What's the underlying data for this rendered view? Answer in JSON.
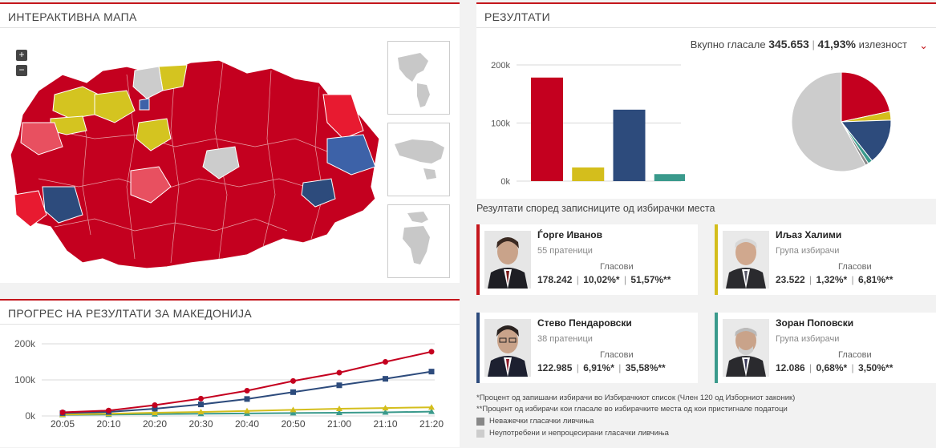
{
  "map_panel": {
    "title": "ИНТЕРАКТИВНА МАПА",
    "zoom_in": "+",
    "zoom_out": "−"
  },
  "results_panel": {
    "title": "РЕЗУЛТАТИ",
    "summary_label": "Вкупно гласале",
    "total_votes": "345.653",
    "turnout": "41,93%",
    "turnout_label": "излезност",
    "bar_chart": {
      "type": "bar",
      "ticks": [
        "200k",
        "100k",
        "0k"
      ],
      "ylim": [
        0,
        200000
      ],
      "values": [
        178242,
        23522,
        122985,
        12086
      ],
      "colors": [
        "#c4001f",
        "#d4be1c",
        "#2d4b7c",
        "#3a9a8c"
      ]
    },
    "pie_chart": {
      "type": "pie",
      "values": [
        178242,
        23522,
        122985,
        12086,
        8818,
        479000
      ],
      "colors": [
        "#c4001f",
        "#d4be1c",
        "#2d4b7c",
        "#3a9a8c",
        "#888888",
        "#cccccc"
      ]
    }
  },
  "candidates_section": {
    "label": "Резултати според записниците од избирачки места",
    "votes_label": "Гласови",
    "candidates": [
      {
        "name": "Ѓорге Иванов",
        "sub": "55 пратеници",
        "votes": "178.242",
        "pct1": "10,02%*",
        "pct2": "51,57%**",
        "color": "#c4001f"
      },
      {
        "name": "Иљаз Халими",
        "sub": "Група избирачи",
        "votes": "23.522",
        "pct1": "1,32%*",
        "pct2": "6,81%**",
        "color": "#d4be1c"
      },
      {
        "name": "Стево Пендаровски",
        "sub": "38 пратеници",
        "votes": "122.985",
        "pct1": "6,91%*",
        "pct2": "35,58%**",
        "color": "#2d4b7c"
      },
      {
        "name": "Зоран Поповски",
        "sub": "Група избирачи",
        "votes": "12.086",
        "pct1": "0,68%*",
        "pct2": "3,50%**",
        "color": "#3a9a8c"
      }
    ],
    "note1": "*Процент од запишани избирачи во Избирачкиот список (Член 120 од Изборниот законик)",
    "note2": "**Процент од избирачи кои гласале во избирачките места од кои пристигнале податоци",
    "legend_invalid": "Неважечки гласачки ливчиња",
    "legend_unused": "Неупотребени и непроцесирани гласачки ливчиња",
    "legend_colors": [
      "#888888",
      "#cccccc"
    ]
  },
  "progress_panel": {
    "title": "ПРОГРЕС НА РЕЗУЛТАТИ ЗА МАКЕДОНИЈА"
  },
  "chart_data": {
    "type": "line",
    "x": [
      "20:05",
      "20:10",
      "20:20",
      "20:30",
      "20:40",
      "20:50",
      "21:00",
      "21:10",
      "21:20"
    ],
    "y_ticks": [
      "200k",
      "100k",
      "0k"
    ],
    "ylim": [
      0,
      200000
    ],
    "series": [
      {
        "values": [
          10000,
          15000,
          30000,
          48000,
          70000,
          97000,
          120000,
          150000,
          178000
        ],
        "color": "#c4001f",
        "marker": "circle"
      },
      {
        "values": [
          8000,
          11000,
          20000,
          32000,
          47000,
          66000,
          85000,
          103000,
          123000
        ],
        "color": "#2d4b7c",
        "marker": "square"
      },
      {
        "values": [
          4000,
          6000,
          9000,
          11000,
          14000,
          17000,
          20000,
          22000,
          24000
        ],
        "color": "#d4be1c",
        "marker": "triangle"
      },
      {
        "values": [
          3000,
          4000,
          5000,
          6000,
          7000,
          8000,
          9000,
          10000,
          12000
        ],
        "color": "#3a9a8c",
        "marker": "triangle"
      }
    ]
  }
}
